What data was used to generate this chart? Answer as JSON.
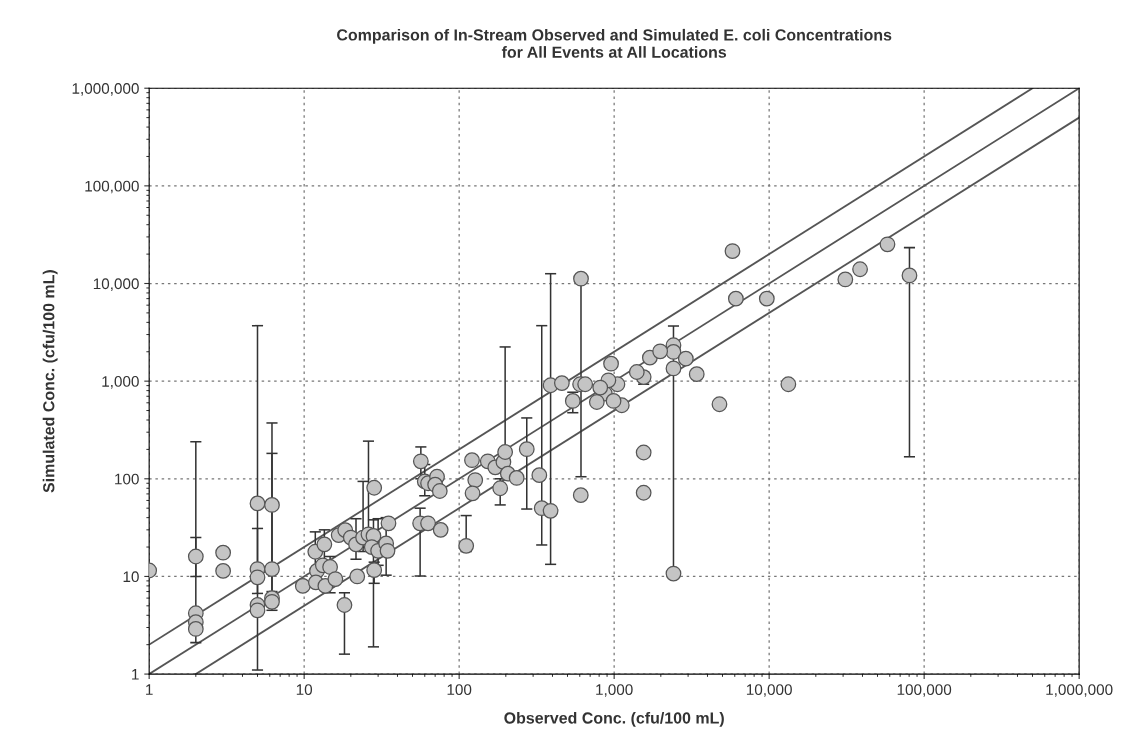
{
  "chart_data": {
    "type": "scatter",
    "title": "Comparison of In-Stream Observed and Simulated E. coli Concentrations\nfor All Events at All Locations",
    "xlabel": "Observed Conc. (cfu/100 mL)",
    "ylabel": "Simulated Conc. (cfu/100 mL)",
    "log": "xy",
    "grid": true,
    "xlim": [
      1,
      1000000
    ],
    "ylim": [
      1,
      1000000
    ],
    "xticks": [
      1,
      10,
      100,
      {
        "value": 1000,
        "label": "1,000"
      },
      {
        "value": 10000,
        "label": "10,000"
      },
      {
        "value": 100000,
        "label": "100,000"
      },
      {
        "value": 1000000,
        "label": "1,000,000"
      }
    ],
    "yticks": [
      1,
      10,
      100,
      {
        "value": 1000,
        "label": "1,000"
      },
      {
        "value": 10000,
        "label": "10,000"
      },
      {
        "value": 100000,
        "label": "100,000"
      },
      {
        "value": 1000000,
        "label": "1,000,000"
      }
    ],
    "series": [
      {
        "type": "line",
        "marker": "none",
        "color": "#555555",
        "x": [
          1,
          500000
        ],
        "values": [
          2,
          1000000
        ]
      },
      {
        "type": "line",
        "marker": "none",
        "color": "#555555",
        "x": [
          1,
          1000000
        ],
        "values": [
          1,
          1000000
        ]
      },
      {
        "type": "line",
        "marker": "none",
        "color": "#555555",
        "x": [
          2,
          1000000
        ],
        "values": [
          1,
          500000
        ]
      },
      {
        "marker": "circle",
        "color": "#c4c4c4",
        "x": [
          1,
          2,
          2,
          2,
          2,
          3,
          3,
          5,
          5,
          5,
          5,
          5,
          6.2,
          6.2,
          6.2,
          6.2,
          9.8,
          11.8,
          12.1,
          11.9,
          13.5,
          13.2,
          14.7,
          13.7,
          15.9,
          16.7,
          18.4,
          18.2,
          20,
          21.6,
          22,
          24,
          26,
          28.3,
          28,
          28.3,
          27.3,
          30,
          33.8,
          34.5,
          35,
          56.6,
          56,
          63,
          60,
          63,
          72,
          70,
          75,
          76,
          111,
          121,
          127,
          122,
          153,
          171,
          193,
          198,
          206,
          184,
          235,
          273,
          329,
          341,
          389,
          609,
          611,
          1550,
          1550,
          2414,
          4780,
          5800,
          6100,
          9660,
          13300,
          31000,
          38600,
          58000,
          80400,
          955,
          2414,
          2414,
          2414,
          2900,
          3410,
          1700,
          1980,
          1550,
          1400,
          1050,
          1120,
          870,
          918,
          389,
          460,
          541,
          603,
          650,
          773,
          813,
          991
        ],
        "values": [
          11.5,
          16,
          4.2,
          3.4,
          2.9,
          17.5,
          11.4,
          56,
          11.9,
          9.8,
          5.1,
          4.5,
          54,
          11.9,
          6.0,
          5.5,
          8.0,
          17.9,
          11.4,
          8.7,
          21.3,
          13,
          12.5,
          8.0,
          9.4,
          26.5,
          29.8,
          5.1,
          25,
          21.3,
          10,
          25,
          27,
          81,
          26,
          11.6,
          20,
          18.3,
          21.8,
          18.3,
          35,
          151,
          35,
          35,
          94,
          90,
          105,
          87,
          75,
          30,
          20.6,
          155,
          97,
          71,
          151,
          131,
          149,
          188,
          113,
          80,
          102,
          201,
          109,
          50,
          47,
          68,
          11200,
          186,
          72,
          10.7,
          580,
          21500,
          7000,
          7000,
          930,
          11000,
          14000,
          25200,
          12100,
          1510,
          2330,
          1990,
          1350,
          1700,
          1180,
          1740,
          2020,
          1100,
          1240,
          930,
          566,
          747,
          1020,
          908,
          955,
          627,
          930,
          930,
          612,
          860,
          627
        ],
        "errors": [
          null,
          [
            10,
            240
          ],
          [
            2.1,
            25
          ],
          null,
          null,
          null,
          null,
          [
            1.1,
            3700
          ],
          null,
          [
            6.7,
            31
          ],
          null,
          null,
          [
            7,
            373
          ],
          [
            4.5,
            182
          ],
          null,
          null,
          null,
          [
            12,
            28.6
          ],
          null,
          null,
          [
            14,
            30
          ],
          null,
          [
            6.8,
            16
          ],
          null,
          null,
          null,
          null,
          [
            1.6,
            6.8
          ],
          null,
          [
            15,
            39
          ],
          null,
          [
            18,
            94
          ],
          [
            20,
            243
          ],
          null,
          [
            1.9,
            38
          ],
          [
            8.5,
            14
          ],
          null,
          [
            13,
            39
          ],
          [
            10.3,
            40
          ],
          null,
          null,
          [
            100,
            212
          ],
          [
            10.1,
            50
          ],
          null,
          [
            67,
            140
          ],
          null,
          null,
          null,
          null,
          null,
          [
            18,
            42
          ],
          null,
          null,
          null,
          null,
          null,
          null,
          [
            150,
            2240
          ],
          null,
          [
            54,
            100
          ],
          null,
          [
            49,
            420
          ],
          null,
          [
            21,
            3700
          ],
          [
            13.3,
            12600
          ],
          null,
          [
            105,
            11200
          ],
          null,
          null,
          [
            10.7,
            3670
          ],
          null,
          null,
          null,
          null,
          null,
          null,
          null,
          null,
          [
            168,
            23300
          ],
          null,
          null,
          null,
          null,
          null,
          null,
          null,
          null,
          [
            930,
            1240
          ],
          null,
          null,
          null,
          null,
          null,
          null,
          null,
          [
            475,
            770
          ],
          null,
          null,
          null,
          null,
          null
        ]
      }
    ]
  }
}
